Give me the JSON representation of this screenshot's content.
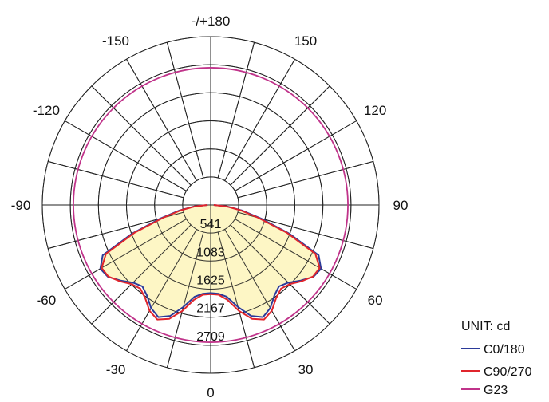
{
  "chart_data": {
    "type": "polar-line",
    "unit_label": "UNIT: cd",
    "radial_axis": {
      "max": 3250,
      "rings": [
        541,
        1083,
        1625,
        2167,
        2709,
        3250
      ],
      "labels": [
        "541",
        "1083",
        "1625",
        "2167",
        "2709"
      ]
    },
    "angle_labels": [
      {
        "angle": 180,
        "text": "-/+180"
      },
      {
        "angle": -150,
        "text": "-150"
      },
      {
        "angle": 150,
        "text": "150"
      },
      {
        "angle": -120,
        "text": "-120"
      },
      {
        "angle": 120,
        "text": "120"
      },
      {
        "angle": -90,
        "text": "-90"
      },
      {
        "angle": 90,
        "text": "90"
      },
      {
        "angle": -60,
        "text": "-60"
      },
      {
        "angle": 60,
        "text": "60"
      },
      {
        "angle": -30,
        "text": "-30"
      },
      {
        "angle": 30,
        "text": "30"
      },
      {
        "angle": 0,
        "text": "0"
      }
    ],
    "angle_grid_step": 15,
    "fill_color": "#fdf6c2",
    "series": [
      {
        "name": "C0/180",
        "color": "#2b3a99",
        "fill": true,
        "angles": [
          0,
          5,
          10,
          15,
          20,
          25,
          30,
          35,
          40,
          45,
          50,
          55,
          60,
          65,
          70,
          75,
          80,
          85,
          90
        ],
        "values": [
          1700,
          1720,
          1800,
          2040,
          2280,
          2390,
          2300,
          2140,
          2050,
          2120,
          2270,
          2420,
          2460,
          2300,
          1620,
          1000,
          620,
          320,
          60
        ]
      },
      {
        "name": "C90/270",
        "color": "#e0252c",
        "fill": false,
        "angles": [
          0,
          5,
          10,
          15,
          20,
          25,
          30,
          35,
          40,
          45,
          50,
          55,
          60,
          65,
          70,
          75,
          80,
          85,
          90
        ],
        "values": [
          1720,
          1740,
          1860,
          2120,
          2340,
          2440,
          2360,
          2200,
          2110,
          2160,
          2290,
          2410,
          2430,
          2230,
          1560,
          950,
          580,
          300,
          60
        ]
      },
      {
        "name": "G23",
        "color": "#c0338a",
        "fill": false,
        "angles": [
          0,
          30,
          60,
          90,
          120,
          150,
          180
        ],
        "values": [
          2650,
          2650,
          2650,
          2650,
          2650,
          2650,
          2650
        ]
      }
    ]
  }
}
